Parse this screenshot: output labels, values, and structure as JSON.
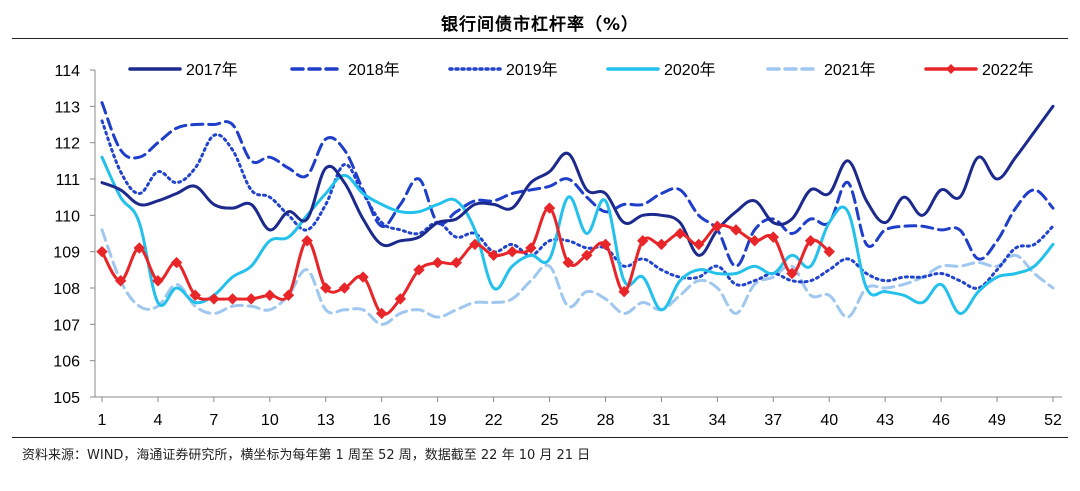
{
  "title": "银行间债市杠杆率（%）",
  "source": "资料来源：WIND，海通证券研究所，横坐标为每年第 1 周至 52 周，数据截至 22 年 10 月 21 日",
  "chart_data": {
    "type": "line",
    "title": "银行间债市杠杆率（%）",
    "xlabel": "",
    "ylabel": "",
    "xlim": [
      1,
      52
    ],
    "ylim": [
      105,
      114
    ],
    "x_ticks": [
      "1",
      "4",
      "7",
      "10",
      "13",
      "16",
      "19",
      "22",
      "25",
      "28",
      "31",
      "34",
      "37",
      "40",
      "43",
      "46",
      "49",
      "52"
    ],
    "y_ticks": [
      "105",
      "106",
      "107",
      "108",
      "109",
      "110",
      "111",
      "112",
      "113",
      "114"
    ],
    "legend_position": "top",
    "series": [
      {
        "name": "2017年",
        "color": "#1b2a8c",
        "dash": "solid",
        "marker": "none",
        "values": [
          110.9,
          110.7,
          110.3,
          110.4,
          110.6,
          110.8,
          110.3,
          110.2,
          110.3,
          109.6,
          110.1,
          109.9,
          111.3,
          110.9,
          109.9,
          109.2,
          109.3,
          109.4,
          109.8,
          109.9,
          110.3,
          110.3,
          110.2,
          110.9,
          111.2,
          111.7,
          110.7,
          110.6,
          109.8,
          110.0,
          110.0,
          109.8,
          108.9,
          109.6,
          110.1,
          110.4,
          109.8,
          109.9,
          110.7,
          110.6,
          111.5,
          110.4,
          109.8,
          110.5,
          110.0,
          110.7,
          110.5,
          111.6,
          111.0,
          111.6,
          112.3,
          113.0
        ]
      },
      {
        "name": "2018年",
        "color": "#1f3ec9",
        "dash": "long",
        "marker": "none",
        "values": [
          113.1,
          111.8,
          111.6,
          112.0,
          112.4,
          112.5,
          112.5,
          112.5,
          111.5,
          111.6,
          111.3,
          111.1,
          112.1,
          111.8,
          110.7,
          109.7,
          110.3,
          111.0,
          109.8,
          110.1,
          110.4,
          110.4,
          110.6,
          110.7,
          110.8,
          111.0,
          110.5,
          110.1,
          110.3,
          110.3,
          110.6,
          110.7,
          110.0,
          109.6,
          108.6,
          109.6,
          109.9,
          109.5,
          109.9,
          109.8,
          110.9,
          109.2,
          109.6,
          109.7,
          109.7,
          109.6,
          109.6,
          108.8,
          109.3,
          110.2,
          110.7,
          110.2
        ]
      },
      {
        "name": "2019年",
        "color": "#2244cc",
        "dash": "dot",
        "marker": "none",
        "values": [
          112.6,
          111.2,
          110.6,
          111.2,
          110.9,
          111.3,
          112.2,
          111.8,
          110.7,
          110.5,
          110.0,
          109.6,
          110.3,
          111.4,
          110.6,
          109.8,
          109.6,
          109.5,
          109.8,
          109.4,
          109.5,
          109.0,
          109.2,
          108.9,
          109.3,
          109.3,
          109.1,
          109.1,
          108.6,
          108.8,
          108.5,
          108.3,
          108.3,
          108.6,
          108.1,
          108.2,
          108.4,
          108.2,
          108.2,
          108.5,
          108.8,
          108.4,
          108.2,
          108.3,
          108.3,
          108.4,
          108.2,
          108.0,
          108.5,
          109.1,
          109.2,
          109.7
        ]
      },
      {
        "name": "2020年",
        "color": "#23c1ec",
        "dash": "solid",
        "marker": "none",
        "values": [
          111.6,
          110.5,
          109.8,
          107.6,
          108.0,
          107.6,
          107.8,
          108.3,
          108.6,
          109.3,
          109.4,
          110.0,
          110.6,
          111.1,
          110.6,
          110.3,
          110.1,
          110.1,
          110.3,
          110.4,
          109.6,
          108.0,
          108.6,
          108.9,
          108.8,
          110.5,
          109.5,
          110.4,
          108.2,
          108.3,
          107.4,
          108.2,
          108.5,
          108.4,
          108.4,
          108.6,
          108.4,
          108.9,
          108.6,
          109.8,
          110.1,
          108.0,
          107.9,
          107.8,
          107.6,
          108.1,
          107.3,
          107.9,
          108.3,
          108.4,
          108.6,
          109.2
        ]
      },
      {
        "name": "2021年",
        "color": "#9fc7ef",
        "dash": "long",
        "marker": "none",
        "values": [
          109.6,
          108.2,
          107.5,
          107.5,
          108.1,
          107.5,
          107.3,
          107.5,
          107.5,
          107.4,
          107.8,
          108.5,
          107.4,
          107.4,
          107.4,
          107.0,
          107.3,
          107.4,
          107.2,
          107.4,
          107.6,
          107.6,
          107.7,
          108.2,
          108.6,
          107.5,
          107.9,
          107.7,
          107.3,
          107.6,
          107.4,
          107.8,
          108.2,
          108.0,
          107.3,
          108.1,
          108.3,
          108.6,
          107.8,
          107.8,
          107.2,
          108.0,
          108.0,
          108.1,
          108.3,
          108.6,
          108.6,
          108.7,
          108.6,
          108.9,
          108.4,
          108.0
        ]
      },
      {
        "name": "2022年",
        "color": "#e8262a",
        "dash": "solid",
        "marker": "diamond",
        "values": [
          109.0,
          108.2,
          109.1,
          108.2,
          108.7,
          107.8,
          107.7,
          107.7,
          107.7,
          107.8,
          107.8,
          109.3,
          108.0,
          108.0,
          108.3,
          107.3,
          107.7,
          108.5,
          108.7,
          108.7,
          109.2,
          108.9,
          109.0,
          109.1,
          110.2,
          108.7,
          108.9,
          109.2,
          107.9,
          109.3,
          109.2,
          109.5,
          109.2,
          109.7,
          109.6,
          109.3,
          109.4,
          108.4,
          109.3,
          109.0
        ]
      }
    ]
  }
}
